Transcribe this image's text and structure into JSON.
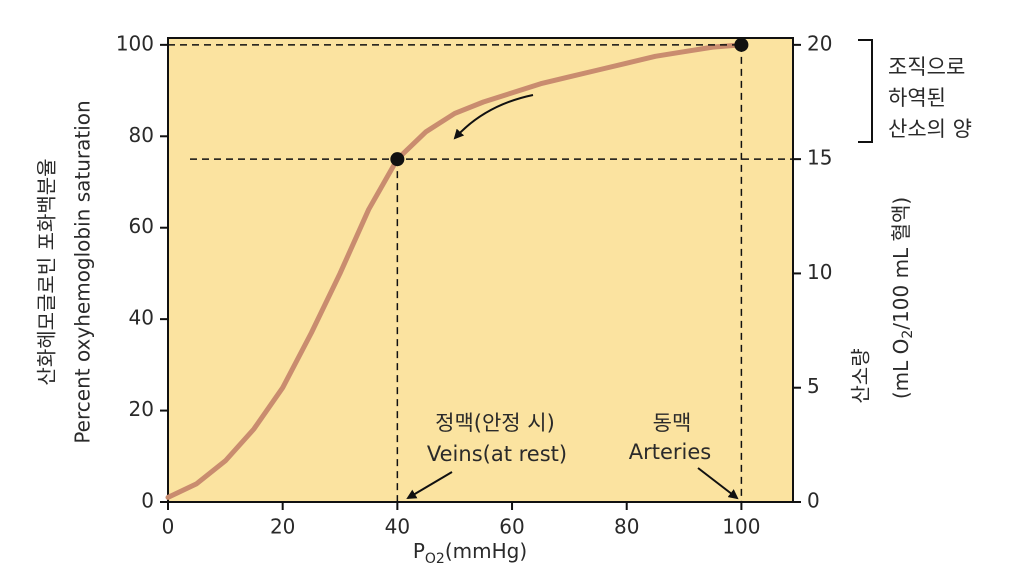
{
  "chart_data": {
    "type": "line",
    "ylabel": [
      "산화헤모글로빈 포화백분율",
      "Percent oxyhemoglobin saturation"
    ],
    "y2label": [
      "산소량",
      "(mL O",
      "2",
      "/100 mL 혈액)"
    ],
    "xlabel": [
      "P",
      "O2",
      "(mmHg)"
    ],
    "xlim": [
      0,
      109
    ],
    "xticks": [
      0,
      20,
      40,
      60,
      80,
      100
    ],
    "ylim": [
      0,
      101.5
    ],
    "yticks": [
      0,
      20,
      40,
      60,
      80,
      100
    ],
    "y2lim": [
      0,
      20.3
    ],
    "y2ticks": [
      0,
      5,
      10,
      15,
      20
    ],
    "plot_color": "#fbe3a0",
    "series": [
      {
        "color": "#c98c6f",
        "x": [
          0,
          5,
          10,
          15,
          20,
          25,
          30,
          35,
          40,
          45,
          50,
          55,
          60,
          65,
          70,
          75,
          80,
          85,
          90,
          95,
          100
        ],
        "values": [
          1,
          4,
          9,
          16,
          25,
          37,
          50,
          64,
          75,
          81,
          85,
          87.5,
          89.5,
          91.5,
          93,
          94.5,
          96,
          97.5,
          98.5,
          99.5,
          100
        ]
      },
      {
        "type": "scatter",
        "color": "#111111",
        "x": [
          40,
          100
        ],
        "values": [
          75,
          100
        ]
      }
    ],
    "annotations": {
      "veins": [
        "정맥(안정 시)",
        "Veins(at rest)"
      ],
      "arteries": [
        "동맥",
        "Arteries"
      ],
      "unloaded": [
        "조직으로",
        "하역된",
        "산소의 양"
      ]
    }
  }
}
